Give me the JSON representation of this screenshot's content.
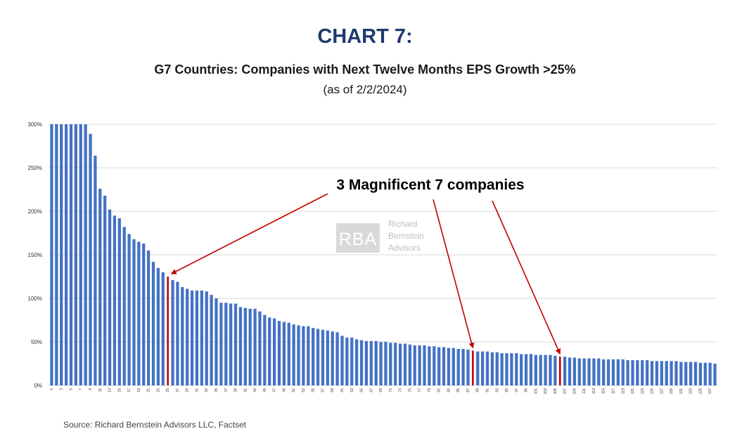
{
  "header": {
    "title": "CHART 7:",
    "subtitle": "G7 Countries: Companies with Next Twelve Months EPS Growth >25%",
    "date_note": "(as of 2/2/2024)"
  },
  "annotation": {
    "text": "3 Magnificent 7 companies"
  },
  "watermark": {
    "logo_text": "RBA",
    "lines": [
      "Richard",
      "Bernstein",
      "Advisors"
    ]
  },
  "source": "Source: Richard Bernstein Advisors LLC, Factset",
  "colors": {
    "bar": "#4472c4",
    "highlight": "#c00000",
    "grid": "#d9d9d9",
    "title": "#1f3a6e"
  },
  "chart_data": {
    "type": "bar",
    "y_tick_labels": [
      "0%",
      "50%",
      "100%",
      "150%",
      "200%",
      "250%",
      "300%"
    ],
    "ylim": [
      0,
      300
    ],
    "grid": true,
    "categories": [
      1,
      2,
      3,
      4,
      5,
      6,
      7,
      8,
      9,
      10,
      11,
      12,
      13,
      14,
      15,
      16,
      17,
      18,
      19,
      20,
      21,
      22,
      23,
      24,
      25,
      26,
      27,
      28,
      29,
      30,
      31,
      32,
      33,
      34,
      35,
      36,
      37,
      38,
      39,
      40,
      41,
      42,
      43,
      44,
      45,
      46,
      47,
      48,
      49,
      50,
      51,
      52,
      53,
      54,
      55,
      56,
      57,
      58,
      59,
      60,
      61,
      62,
      63,
      64,
      65,
      66,
      67,
      68,
      69,
      70,
      71,
      72,
      73,
      74,
      75,
      76,
      77,
      78,
      79,
      80,
      81,
      82,
      83,
      84,
      85,
      86,
      87,
      88,
      89,
      90,
      91,
      92,
      93,
      94,
      95,
      96,
      97,
      98,
      99,
      100,
      101,
      102,
      103,
      104,
      105,
      106,
      107,
      108,
      109,
      110,
      111,
      112,
      113,
      114,
      115,
      116,
      117,
      118,
      119,
      120,
      121,
      122,
      123,
      124,
      125,
      126,
      127,
      128,
      129,
      130,
      131,
      132,
      133,
      134,
      135,
      136,
      137,
      138
    ],
    "values": [
      300,
      300,
      300,
      300,
      300,
      300,
      300,
      300,
      289,
      264,
      226,
      218,
      202,
      195,
      192,
      182,
      174,
      168,
      165,
      163,
      155,
      142,
      135,
      130,
      125,
      121,
      119,
      113,
      111,
      109,
      109,
      109,
      108,
      104,
      100,
      95,
      95,
      94,
      94,
      90,
      89,
      88,
      88,
      85,
      81,
      78,
      77,
      74,
      73,
      72,
      70,
      69,
      68,
      68,
      66,
      65,
      64,
      63,
      62,
      61,
      57,
      55,
      55,
      53,
      52,
      51,
      51,
      51,
      50,
      50,
      49,
      49,
      48,
      48,
      47,
      46,
      46,
      46,
      45,
      45,
      44,
      44,
      43,
      43,
      42,
      42,
      41,
      40,
      39,
      39,
      39,
      38,
      38,
      37,
      37,
      37,
      37,
      36,
      36,
      36,
      35,
      35,
      35,
      35,
      34,
      33,
      33,
      32,
      32,
      31,
      31,
      31,
      31,
      31,
      30,
      30,
      30,
      30,
      30,
      29,
      29,
      29,
      29,
      29,
      28,
      28,
      28,
      28,
      28,
      28,
      27,
      27,
      27,
      27,
      26,
      26,
      26,
      25
    ],
    "highlight_indices": [
      24,
      87,
      105
    ],
    "x_tick_step": 2
  }
}
